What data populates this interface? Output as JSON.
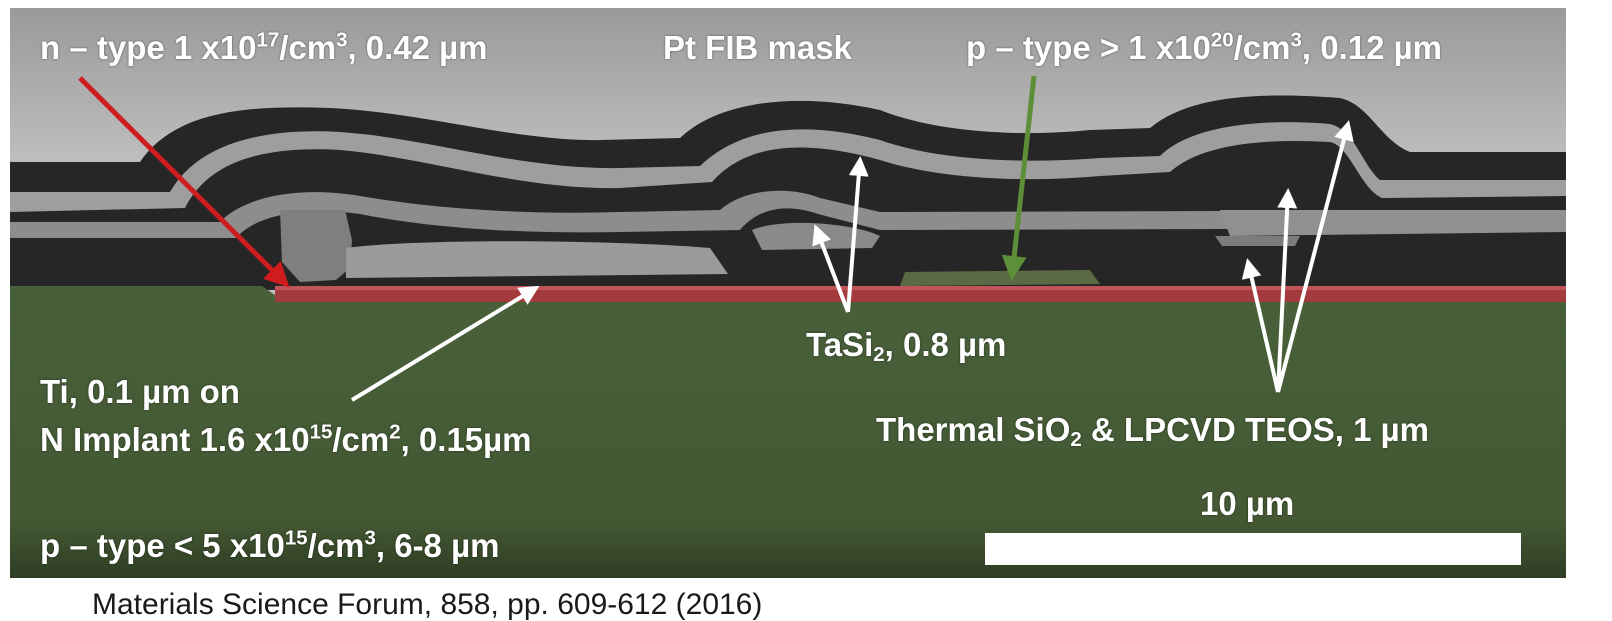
{
  "colors": {
    "background_top": "#bcbcbc",
    "oxide_dark": "#262626",
    "metal_light": "#a3a3a3",
    "n_type_red": "#a23a3e",
    "substrate_green": "#455c38",
    "arrow_red": "#d01c1c",
    "arrow_green": "#5d8f38",
    "arrow_white": "#ffffff",
    "scale_bar": "#ffffff"
  },
  "labels": {
    "n_type": {
      "pre": "n – type 1 x10",
      "exp": "17",
      "mid": "/cm",
      "exp2": "3",
      "post": ", 0.42 µm"
    },
    "pt_fib": "Pt FIB mask",
    "p_type_top": {
      "pre": "p – type > 1 x10",
      "exp": "20",
      "mid": "/cm",
      "exp2": "3",
      "post": ", 0.12 µm"
    },
    "tasi": {
      "pre": "TaSi",
      "sub": "2",
      "post": ", 0.8 µm"
    },
    "ti_line1": "Ti, 0.1 µm on",
    "ti_line2": {
      "pre": "N Implant 1.6 x10",
      "exp": "15",
      "mid": "/cm",
      "exp2": "2",
      "post": ", 0.15µm"
    },
    "thermal": {
      "pre": "Thermal SiO",
      "sub": "2",
      "post": " & LPCVD TEOS, 1 µm"
    },
    "scale": "10 µm",
    "p_type_bottom": {
      "pre": "p – type < 5 x10",
      "exp": "15",
      "mid": "/cm",
      "exp2": "3",
      "post": ", 6-8 µm"
    }
  },
  "citation": "Materials Science Forum, 858, pp. 609-612 (2016)"
}
